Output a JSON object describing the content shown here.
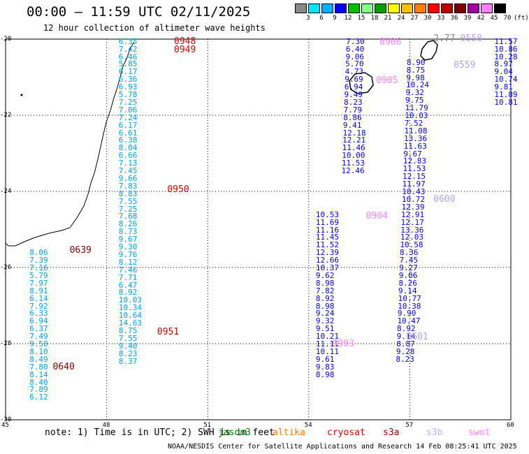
{
  "header": {
    "title": "00:00 – 11:59 UTC 02/11/2025",
    "subtitle": "12 hour collection of altimeter wave heights"
  },
  "colorbar": {
    "labels": [
      "3",
      "6",
      "9",
      "12",
      "15",
      "18",
      "21",
      "24",
      "27",
      "30",
      "33",
      "36",
      "39",
      "42",
      "45",
      "70",
      "(ft)"
    ],
    "colors": [
      "#888888",
      "#00e8ff",
      "#00b0ff",
      "#0000ff",
      "#00c000",
      "#88ff88",
      "#00a000",
      "#ffff00",
      "#ffc000",
      "#ff8000",
      "#ff0000",
      "#c00000",
      "#800000",
      "#a000a0",
      "#ff80ff",
      "#000000"
    ]
  },
  "axes": {
    "x_ticks": [
      "45",
      "48",
      "51",
      "54",
      "57",
      "60"
    ],
    "y_ticks": [
      "-20",
      "-22",
      "-24",
      "-26",
      "-28",
      "-30"
    ]
  },
  "tracks": [
    {
      "x": 59.8,
      "y0": -20.05,
      "color": "#0000ff",
      "values": [
        "11.57",
        "10.86",
        "10.28",
        "8.97",
        "9.04",
        "10.74",
        "9.81",
        "11.89",
        "10.81"
      ]
    },
    {
      "x": 48.65,
      "y0": -20.05,
      "color": "#00a0ff",
      "values": [
        "6.35",
        "7.42",
        "6.46",
        "5.85",
        "6.17",
        "6.36",
        "6.93",
        "5.78",
        "7.25",
        "7.06",
        "7.24",
        "6.17",
        "6.61",
        "6.38",
        "8.04",
        "6.66",
        "7.13",
        "7.45",
        "9.66",
        "7.83",
        "8.83",
        "7.55",
        "7.25",
        "7.68",
        "8.26",
        "8.73",
        "9.67",
        "9.30",
        "9.76",
        "8.12",
        "7.46",
        "7.71",
        "6.47",
        "8.92",
        "10.03",
        "10.34",
        "10.64",
        "14.63",
        "8.75",
        "7.55",
        "9.40",
        "8.23",
        "8.37"
      ]
    },
    {
      "x": 55.4,
      "y0": -20.05,
      "color": "#0000ff",
      "values": [
        "7.30",
        "6.40",
        "9.06",
        "5.70",
        "4.73",
        "9.69",
        "6.94",
        "9.49",
        "8.23",
        "7.79",
        "8.86",
        "9.41",
        "12.18",
        "12.21",
        "11.46",
        "10.00",
        "11.53",
        "12.46"
      ]
    },
    {
      "x": 57.2,
      "y0": -20.6,
      "color": "#0000ff",
      "values": [
        "8.90",
        "8.75",
        "9.98",
        "10.24",
        "9.32",
        "9.75",
        "11.79",
        "10.03",
        "7.52",
        "11.08",
        "13.36",
        "11.63",
        "9.67",
        "12.83",
        "11.53",
        "12.15",
        "11.97",
        "10.43",
        "10.72",
        "12.39",
        "12.91",
        "12.17",
        "13.36",
        "12.03",
        "10.58",
        "8.36",
        "7.45",
        "9.27",
        "9.06",
        "8.26",
        "9.14",
        "10.77",
        "10.38",
        "9.90",
        "10.47",
        "8.92",
        "9.14",
        "8.87",
        "9.28",
        "8.23"
      ]
    },
    {
      "x": 54.5,
      "y0": -24.6,
      "color": "#0000ff",
      "values": [
        "10.53",
        "11.69",
        "11.16",
        "11.45",
        "11.52",
        "12.39",
        "12.66",
        "10.37",
        "9.62",
        "8.98",
        "7.82",
        "8.92",
        "8.98",
        "9.24",
        "9.32",
        "9.51",
        "10.21",
        "11.11",
        "10.11",
        "9.61",
        "9.83",
        "8.98"
      ]
    },
    {
      "x": 46.0,
      "y0": -25.6,
      "color": "#00a0ff",
      "values": [
        "8.06",
        "7.39",
        "7.16",
        "5.79",
        "7.97",
        "8.91",
        "6.14",
        "7.92",
        "6.33",
        "6.94",
        "6.37",
        "7.49",
        "9.50",
        "8.10",
        "8.49",
        "7.80",
        "8.14",
        "8.40",
        "7.89",
        "6.12"
      ]
    }
  ],
  "track_labels": [
    {
      "text": "0948",
      "x": 50.0,
      "y": -20.05,
      "color": "#e00000"
    },
    {
      "text": "0949",
      "x": 50.0,
      "y": -20.28,
      "color": "#e00000"
    },
    {
      "text": "0950",
      "x": 49.8,
      "y": -23.95,
      "color": "#e00000"
    },
    {
      "text": "0951",
      "x": 49.5,
      "y": -27.68,
      "color": "#e00000"
    },
    {
      "text": "0639",
      "x": 46.9,
      "y": -25.55,
      "color": "#800000"
    },
    {
      "text": "0640",
      "x": 46.4,
      "y": -28.6,
      "color": "#800000"
    },
    {
      "text": "0906",
      "x": 56.1,
      "y": -20.08,
      "color": "#ff80ff"
    },
    {
      "text": "0905",
      "x": 56.0,
      "y": -21.08,
      "color": "#ff80ff"
    },
    {
      "text": "0904",
      "x": 55.7,
      "y": -24.65,
      "color": "#ff80ff"
    },
    {
      "text": "0903",
      "x": 54.7,
      "y": -28.0,
      "color": "#ff80ff"
    },
    {
      "text": "2.77",
      "x": 57.7,
      "y": -19.98,
      "color": "#888888"
    },
    {
      "text": "0558",
      "x": 58.5,
      "y": -19.98,
      "color": "#b0a0ff"
    },
    {
      "text": "0559",
      "x": 58.3,
      "y": -20.68,
      "color": "#b0a0ff"
    },
    {
      "text": "0600",
      "x": 57.7,
      "y": -24.2,
      "color": "#b0a0ff"
    },
    {
      "text": "0601",
      "x": 56.9,
      "y": -27.82,
      "color": "#b0a0ff"
    }
  ],
  "footer": {
    "note": "note: 1) Time is in UTC; 2) SWH is in feet",
    "missions": [
      {
        "name": "jason3",
        "color": "#008000"
      },
      {
        "name": "altika",
        "color": "#ff8000"
      },
      {
        "name": "cryosat",
        "color": "#e00000"
      },
      {
        "name": "s3a",
        "color": "#a00000"
      },
      {
        "name": "s3b",
        "color": "#c0b0ff"
      },
      {
        "name": "swot",
        "color": "#ff80ff"
      }
    ],
    "credit": "NOAA/NESDIS Center for Satellite Applications and Research    14 Feb 08:25:41 UTC 2025"
  }
}
